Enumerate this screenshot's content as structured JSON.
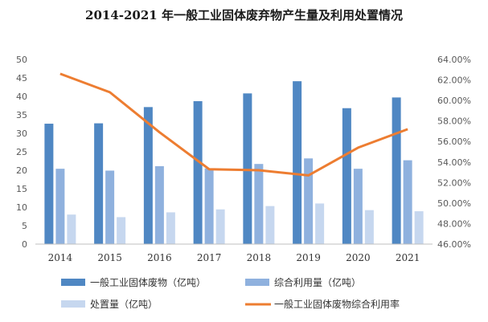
{
  "chart_data": {
    "type": "bar",
    "title": "2014-2021 年一般工业固体废弃物产生量及利用处置情况",
    "categories": [
      "2014",
      "2015",
      "2016",
      "2017",
      "2018",
      "2019",
      "2020",
      "2021"
    ],
    "series": [
      {
        "name": "一般工业固体废物（亿吨）",
        "type": "bar",
        "axis": "left",
        "color": "#4f87c3",
        "values": [
          32.6,
          32.7,
          37.1,
          38.7,
          40.8,
          44.1,
          36.8,
          39.7
        ]
      },
      {
        "name": "综合利用量（亿吨）",
        "type": "bar",
        "axis": "left",
        "color": "#8fb1de",
        "values": [
          20.4,
          19.9,
          21.1,
          20.5,
          21.7,
          23.2,
          20.4,
          22.7
        ]
      },
      {
        "name": "处置量（亿吨）",
        "type": "bar",
        "axis": "left",
        "color": "#c6d7ef",
        "values": [
          8.0,
          7.3,
          8.6,
          9.4,
          10.3,
          11.0,
          9.2,
          8.9
        ]
      },
      {
        "name": "一般工业固体废物综合利用率",
        "type": "line",
        "axis": "right",
        "color": "#ed7d31",
        "values": [
          62.6,
          60.8,
          56.9,
          53.3,
          53.2,
          52.7,
          55.4,
          57.2
        ]
      }
    ],
    "ylim_left": [
      0,
      50
    ],
    "yticks_left": [
      "0",
      "5",
      "10",
      "15",
      "20",
      "25",
      "30",
      "35",
      "40",
      "45",
      "50"
    ],
    "ylim_right": [
      46,
      64
    ],
    "yticks_right": [
      "46.00%",
      "48.00%",
      "50.00%",
      "52.00%",
      "54.00%",
      "56.00%",
      "58.00%",
      "60.00%",
      "62.00%",
      "64.00%"
    ],
    "grid": false,
    "legend_position": "bottom"
  }
}
